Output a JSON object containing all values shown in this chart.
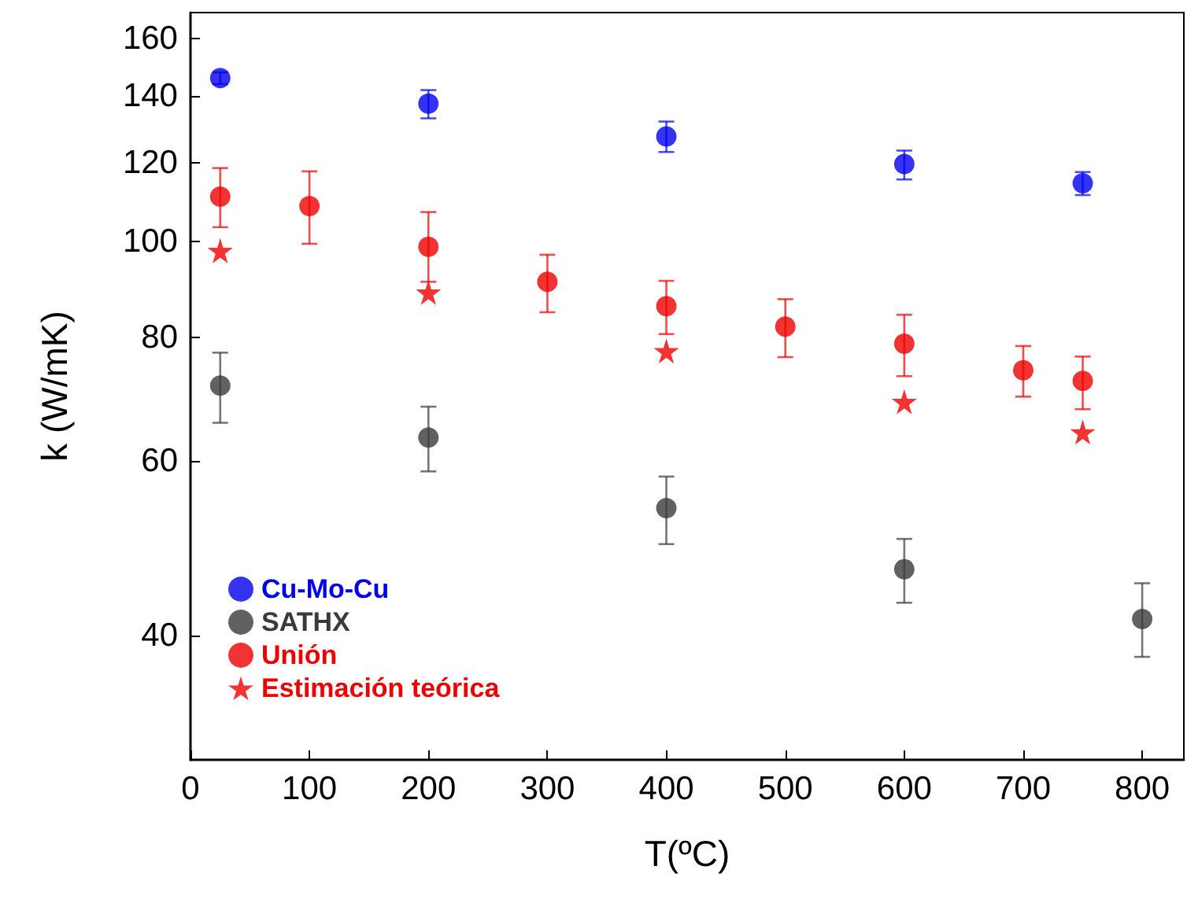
{
  "chart_data": {
    "type": "scatter",
    "xlabel": "T(ºC)",
    "ylabel": "k (W/mK)",
    "xlim": [
      0,
      835
    ],
    "xticks": [
      0,
      100,
      200,
      300,
      400,
      500,
      600,
      700,
      800
    ],
    "ylim": [
      30,
      170
    ],
    "yticks": [
      40,
      60,
      80,
      100,
      120,
      140,
      160
    ],
    "log": "y",
    "grid": false,
    "legend": "bottom left",
    "series": [
      {
        "name": "Cu-Mo-Cu",
        "color": "#0000ee",
        "marker": "circle",
        "x": [
          25,
          200,
          400,
          600,
          750
        ],
        "values": [
          146,
          137.6,
          127.5,
          119.6,
          114.4
        ],
        "errors": [
          [
            144,
            148
          ],
          [
            133,
            142
          ],
          [
            123,
            132
          ],
          [
            115.4,
            123.4
          ],
          [
            111.3,
            117.4
          ]
        ]
      },
      {
        "name": "SATHX",
        "color": "#3a3a3a",
        "marker": "circle",
        "x": [
          25,
          200,
          400,
          600,
          800
        ],
        "values": [
          71.5,
          63.4,
          53.8,
          46.7,
          41.6
        ],
        "errors": [
          [
            65.6,
            77.2
          ],
          [
            58.6,
            68.1
          ],
          [
            49.5,
            57.9
          ],
          [
            43.2,
            50.1
          ],
          [
            38.1,
            45.2
          ]
        ]
      },
      {
        "name": "Unión",
        "color": "#ee0000",
        "marker": "circle",
        "x": [
          25,
          100,
          200,
          300,
          400,
          500,
          600,
          700,
          750
        ],
        "values": [
          110.9,
          108.5,
          98.7,
          91,
          86,
          82,
          78.8,
          74.1,
          72.3
        ],
        "errors": [
          [
            103.3,
            118.5
          ],
          [
            99.4,
            117.6
          ],
          [
            91,
            107
          ],
          [
            84.8,
            96.9
          ],
          [
            80.6,
            91.2
          ],
          [
            76.4,
            87.4
          ],
          [
            73.1,
            84.3
          ],
          [
            69.7,
            78.4
          ],
          [
            67.7,
            76.5
          ]
        ]
      },
      {
        "name": "Estimación teórica",
        "color": "#ee0000",
        "marker": "star",
        "x": [
          25,
          200,
          400,
          600,
          750
        ],
        "values": [
          97.8,
          88.8,
          77.5,
          68.9,
          64.2
        ]
      }
    ]
  }
}
